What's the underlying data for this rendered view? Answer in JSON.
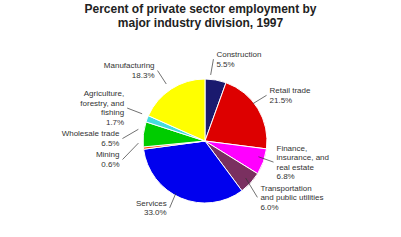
{
  "chart_data": {
    "type": "pie",
    "title": "Percent of private sector employment by\nmajor industry division, 1997",
    "categories": [
      "Construction",
      "Retail trade",
      "Finance,\ninsurance, and\nreal estate",
      "Transportation\nand public utilities",
      "Services",
      "Mining",
      "Wholesale trade",
      "Agriculture,\nforestry, and\nfishing",
      "Manufacturing"
    ],
    "values": [
      5.5,
      21.5,
      6.8,
      6.0,
      33.0,
      0.6,
      6.5,
      1.7,
      18.3
    ],
    "value_labels": [
      "5.5%",
      "21.5%",
      "6.8%",
      "6.0%",
      "33.0%",
      "0.6%",
      "6.5%",
      "1.7%",
      "18.3%"
    ],
    "colors": [
      "#1a1a6e",
      "#dd0000",
      "#ff00ff",
      "#7a3060",
      "#0000ee",
      "#ff4400",
      "#00cc00",
      "#44dddd",
      "#ffff00"
    ]
  }
}
